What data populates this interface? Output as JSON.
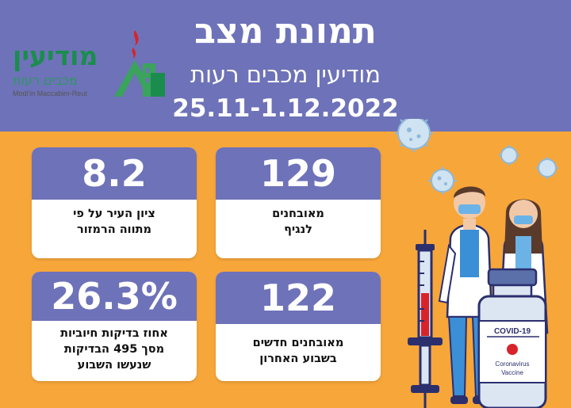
{
  "header": {
    "title": "תמונת מצב",
    "subtitle": "מודיעין מכבים רעות",
    "dates": "25.11-1.12.2022"
  },
  "logo": {
    "hebrew_name": "מודיעין",
    "hebrew_sub": "מכבים רעות",
    "english_name": "Modi'in Maccabim-Reut"
  },
  "stats": [
    {
      "value": "129",
      "label_lines": [
        "מאובחנים",
        "לנגיף"
      ]
    },
    {
      "value": "8.2",
      "label_lines": [
        "ציון העיר על פי",
        "מתווה הרמזור"
      ]
    },
    {
      "value": "122",
      "label_lines": [
        "מאובחנים חדשים",
        "בשבוע האחרון"
      ]
    },
    {
      "value": "26.3%",
      "label_lines": [
        "אחוז בדיקות חיוביות",
        "מסך 495 הבדיקות",
        "שנעשו השבוע"
      ]
    }
  ],
  "illustration": {
    "vaccine_label": "COVID-19",
    "vial_text_1": "Coronavirus",
    "vial_text_2": "Vaccine"
  },
  "colors": {
    "header_bg": "#6e72b8",
    "page_bg": "#f7a63a",
    "card_accent": "#6e72b8",
    "logo_green": "#1a8d4e"
  }
}
